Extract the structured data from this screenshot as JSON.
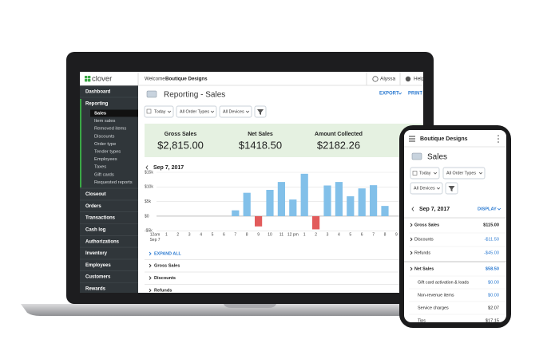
{
  "laptop": {
    "logo": "clover",
    "welcome": "Welcome",
    "account": "Boutique Designs",
    "user": "Alyssa",
    "help": "Help",
    "nav_top": [
      "Dashboard",
      "Reporting"
    ],
    "reporting_items": [
      "Sales",
      "Item sales",
      "Removed items",
      "Discounts",
      "Order type",
      "Tender types",
      "Employees",
      "Taxes",
      "Gift cards",
      "Requested reports"
    ],
    "nav_bottom": [
      "Closeout",
      "Orders",
      "Transactions",
      "Cash log",
      "Authorizations",
      "Inventory",
      "Employees",
      "Customers",
      "Rewards"
    ],
    "page_title": "Reporting - Sales",
    "export": "EXPORT",
    "print": "PRINT",
    "filters": [
      "Today",
      "All Order Types",
      "All Devices"
    ],
    "summary": [
      {
        "label": "Gross Sales",
        "value": "$2,815.00"
      },
      {
        "label": "Net Sales",
        "value": "$1418.50"
      },
      {
        "label": "Amount Collected",
        "value": "$2182.26"
      }
    ],
    "date": "Sep 7, 2017",
    "chart": {
      "type": "bar",
      "categories": [
        "12am",
        "1",
        "2",
        "3",
        "4",
        "5",
        "6",
        "7",
        "8",
        "9",
        "10",
        "11",
        "12 pm",
        "1",
        "2",
        "3",
        "4",
        "5",
        "6",
        "7",
        "8",
        "9",
        "10"
      ],
      "first_category_date": "Sep 7",
      "values": [
        0,
        0,
        0,
        0,
        0,
        0,
        0,
        2000,
        8000,
        -3500,
        9000,
        11700,
        5700,
        14500,
        -4500,
        10500,
        11700,
        6800,
        9500,
        10600,
        3500,
        null,
        null
      ],
      "color": "#82c0e9",
      "negative_color": "#e25b5b",
      "ylim": [
        -5000,
        15000
      ],
      "yticks": [
        {
          "value": 15000,
          "label": "$15k"
        },
        {
          "value": 10000,
          "label": "$10k"
        },
        {
          "value": 5000,
          "label": "$5k"
        },
        {
          "value": 0,
          "label": "$0"
        },
        {
          "value": -5000,
          "label": "-$5k"
        }
      ],
      "grid": true
    },
    "expand_all": "EXPAND ALL",
    "rows": [
      "Gross Sales",
      "Discounts",
      "Refunds"
    ]
  },
  "phone": {
    "account": "Boutique Designs",
    "title": "Sales",
    "filters": [
      "Today",
      "All Order Types",
      "All Devices"
    ],
    "date": "Sep 7, 2017",
    "display": "DISPLAY",
    "rows": [
      {
        "label": "Gross Sales",
        "value": "$115.00"
      },
      {
        "label": "Discounts",
        "value": "-$11.50"
      },
      {
        "label": "Refunds",
        "value": "-$45.00"
      },
      {
        "label": "Net Sales",
        "value": "$58.50"
      },
      {
        "label": "Gift card activation & loads",
        "value": "$0.00"
      },
      {
        "label": "Non-revenue items",
        "value": "$0.00"
      },
      {
        "label": "Service charges",
        "value": "$2.07"
      },
      {
        "label": "Tips",
        "value": "$17.15"
      }
    ]
  }
}
